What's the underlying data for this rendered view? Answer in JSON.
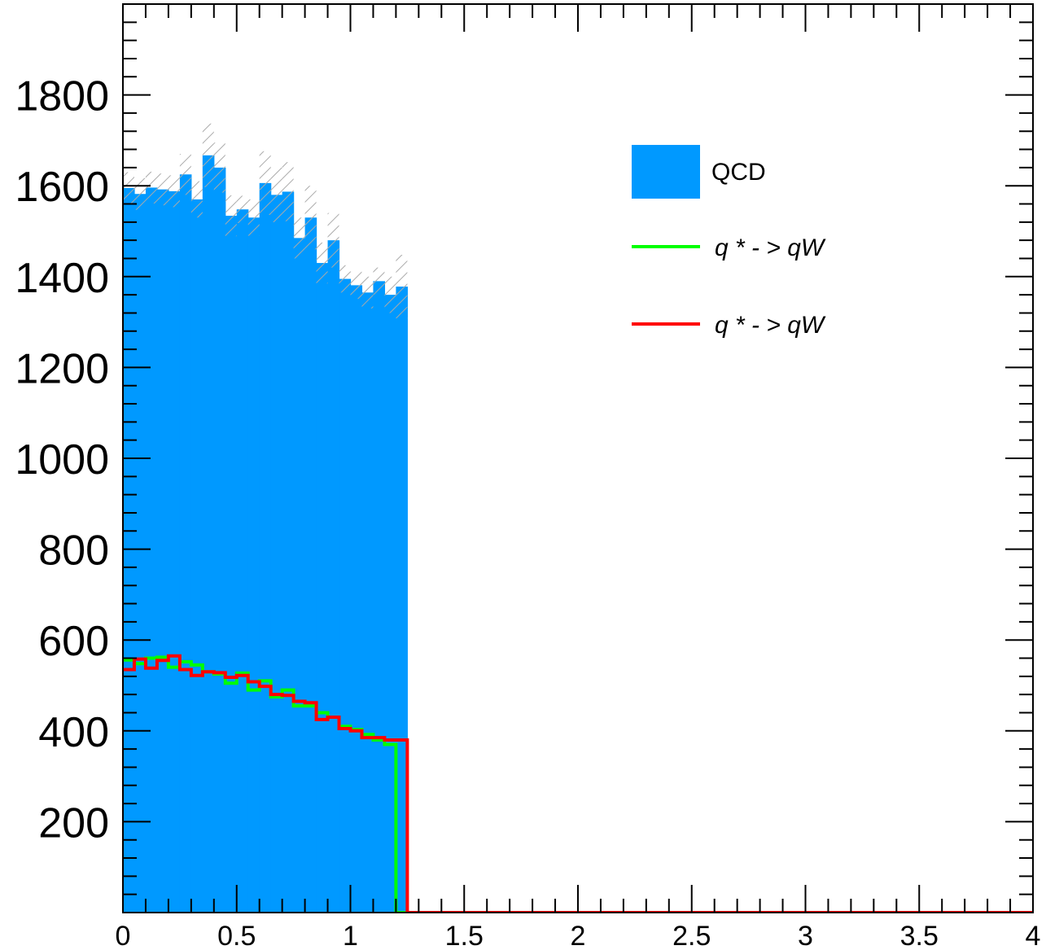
{
  "chart_data": {
    "type": "bar",
    "title": "",
    "xlabel": "",
    "ylabel": "",
    "xlim": [
      0,
      4
    ],
    "ylim": [
      0,
      2000
    ],
    "x_ticks": [
      "0",
      "0.5",
      "1",
      "1.5",
      "2",
      "2.5",
      "3",
      "3.5",
      "4"
    ],
    "y_ticks": [
      "200",
      "400",
      "600",
      "800",
      "1000",
      "1200",
      "1400",
      "1600",
      "1800"
    ],
    "bin_width": 0.05,
    "x_end": 4.0,
    "legend_position": "top-right",
    "series": [
      {
        "name": "QCD",
        "kind": "filled-histogram",
        "color": "#0099ff",
        "values": [
          1595,
          1582,
          1596,
          1592,
          1588,
          1625,
          1570,
          1667,
          1640,
          1534,
          1548,
          1530,
          1606,
          1580,
          1587,
          1485,
          1530,
          1430,
          1480,
          1395,
          1381,
          1365,
          1390,
          1360,
          1378
        ],
        "uncertainty": [
          35,
          35,
          35,
          35,
          35,
          45,
          40,
          70,
          55,
          45,
          30,
          40,
          70,
          60,
          65,
          45,
          70,
          45,
          60,
          30,
          30,
          35,
          30,
          40,
          70
        ]
      },
      {
        "name": "q * - > qW",
        "kind": "step-line",
        "color": "#00ff00",
        "values": [
          556,
          548,
          560,
          562,
          540,
          552,
          545,
          530,
          525,
          505,
          527,
          490,
          510,
          475,
          490,
          455,
          455,
          440,
          430,
          410,
          403,
          392,
          380,
          370,
          0
        ]
      },
      {
        "name": "q * - > qW",
        "kind": "step-line",
        "color": "#ff0000",
        "values": [
          535,
          558,
          538,
          555,
          565,
          535,
          522,
          530,
          528,
          518,
          522,
          508,
          498,
          480,
          478,
          465,
          462,
          425,
          430,
          405,
          400,
          385,
          385,
          380,
          380
        ]
      }
    ]
  }
}
